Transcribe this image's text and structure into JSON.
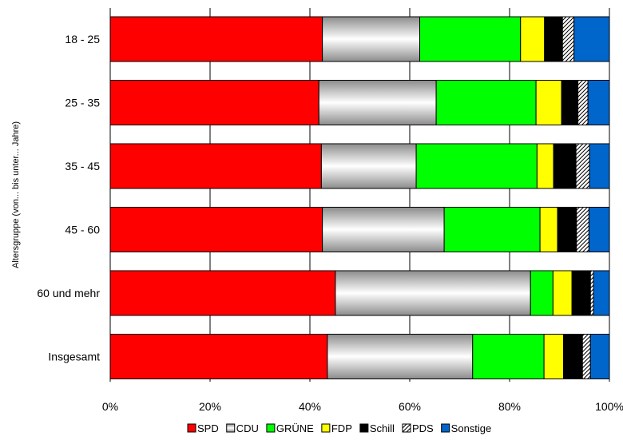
{
  "chart_data": {
    "type": "bar",
    "orientation": "horizontal",
    "stacked": "percent",
    "title": "",
    "xlabel": "",
    "ylabel": "Altersgruppe (von... bis unter... Jahre)",
    "xlim": [
      0,
      100
    ],
    "x_ticks": [
      "0%",
      "20%",
      "40%",
      "60%",
      "80%",
      "100%"
    ],
    "categories": [
      "18  -  25",
      "25  -  35",
      "35  -  45",
      "45  -  60",
      "60 und mehr",
      "Insgesamt"
    ],
    "series": [
      {
        "name": "SPD",
        "color": "#ff0000",
        "pattern": "solid",
        "values": [
          42.5,
          41.8,
          42.3,
          42.5,
          45.1,
          43.5
        ]
      },
      {
        "name": "CDU",
        "color": "#c0c0c0",
        "pattern": "gradient",
        "values": [
          19.5,
          23.5,
          19.0,
          24.4,
          39.1,
          29.1
        ]
      },
      {
        "name": "GRÜNE",
        "color": "#00ff00",
        "pattern": "solid",
        "values": [
          20.2,
          20.0,
          24.2,
          19.2,
          4.5,
          14.3
        ]
      },
      {
        "name": "FDP",
        "color": "#ffff00",
        "pattern": "solid",
        "values": [
          4.8,
          5.1,
          3.3,
          3.5,
          3.8,
          3.9
        ]
      },
      {
        "name": "Schill",
        "color": "#000000",
        "pattern": "solid",
        "values": [
          3.6,
          3.3,
          4.5,
          3.8,
          3.7,
          3.8
        ]
      },
      {
        "name": "PDS",
        "color": "#ffffff",
        "pattern": "hatch",
        "values": [
          2.3,
          2.0,
          2.7,
          2.5,
          0.6,
          1.6
        ]
      },
      {
        "name": "Sonstige",
        "color": "#0066cc",
        "pattern": "solid",
        "values": [
          7.1,
          4.3,
          4.0,
          4.1,
          3.2,
          3.8
        ]
      }
    ],
    "grid": "vertical",
    "legend_position": "bottom"
  }
}
